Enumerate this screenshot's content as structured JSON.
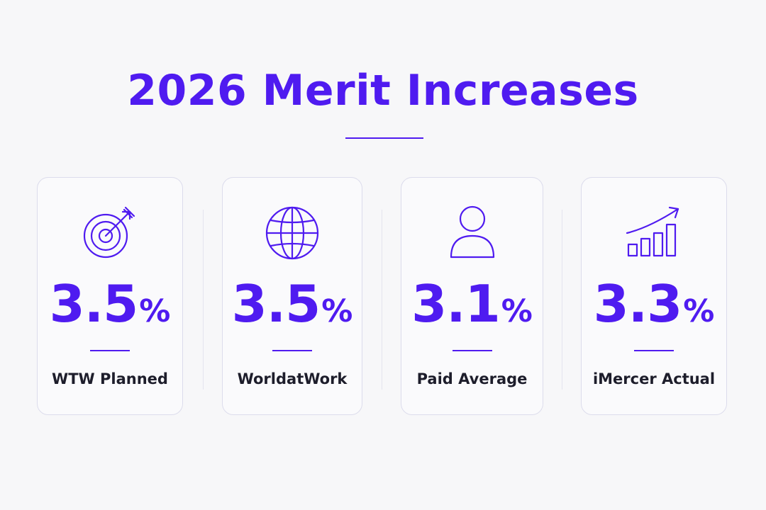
{
  "title": "2026 Merit Increases",
  "colors": {
    "accent": "#4f1bf0",
    "label_text": "#1d1d2b",
    "background": "#f7f7f9",
    "card_border": "#dcdcec"
  },
  "cards": [
    {
      "icon": "target-icon",
      "value": "3.5",
      "unit": "%",
      "label": "WTW Planned"
    },
    {
      "icon": "globe-icon",
      "value": "3.5",
      "unit": "%",
      "label": "WorldatWork"
    },
    {
      "icon": "person-icon",
      "value": "3.1",
      "unit": "%",
      "label": "Paid Average"
    },
    {
      "icon": "growth-chart-icon",
      "value": "3.3",
      "unit": "%",
      "label": "iMercer Actual"
    }
  ]
}
